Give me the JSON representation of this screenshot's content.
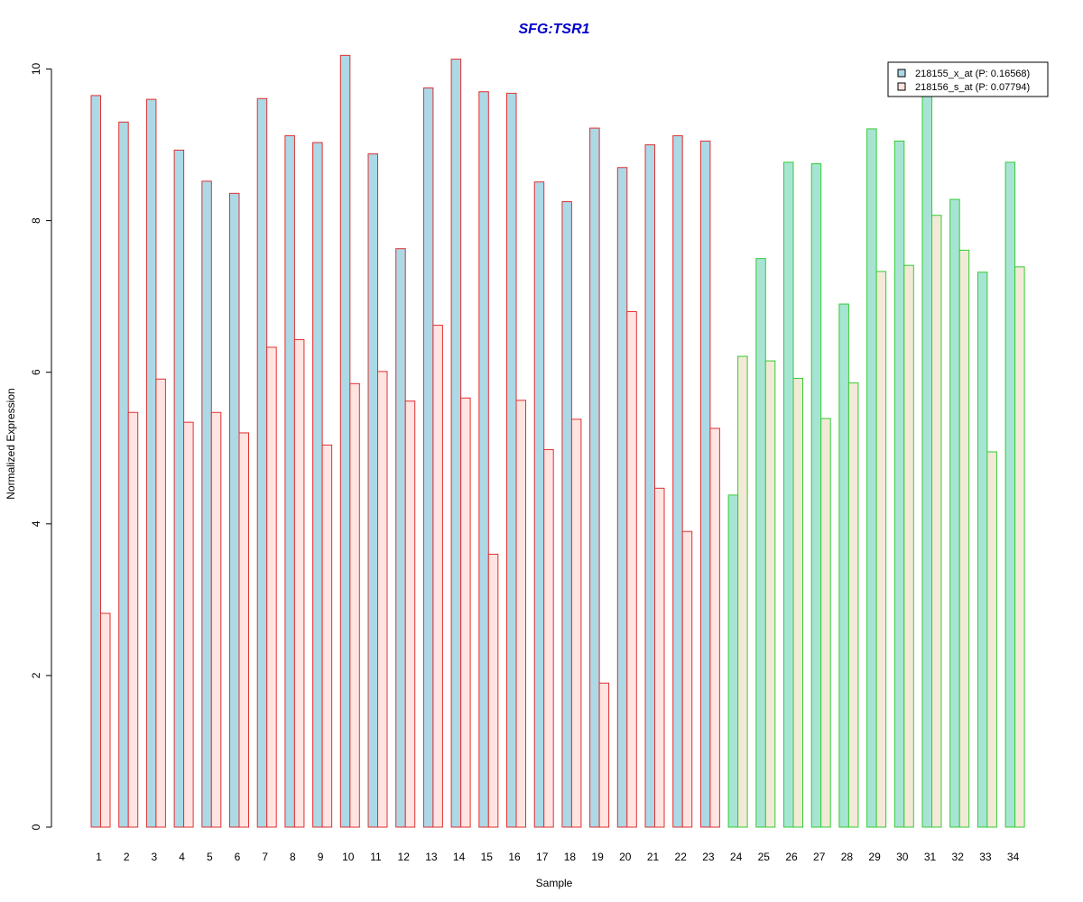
{
  "chart_data": {
    "type": "bar",
    "title": "SFG:TSR1",
    "xlabel": "Sample",
    "ylabel": "Normalized Expression",
    "ylim": [
      0,
      10
    ],
    "yticks": [
      "0",
      "2",
      "4",
      "6",
      "8",
      "10"
    ],
    "grid": false,
    "legend_position": "top-right",
    "categories": [
      "1",
      "2",
      "3",
      "4",
      "5",
      "6",
      "7",
      "8",
      "9",
      "10",
      "11",
      "12",
      "13",
      "14",
      "15",
      "16",
      "17",
      "18",
      "19",
      "20",
      "21",
      "22",
      "23",
      "24",
      "25",
      "26",
      "27",
      "28",
      "29",
      "30",
      "31",
      "32",
      "33",
      "34"
    ],
    "series": [
      {
        "name": "218155_x_at (P: 0.16568)",
        "values": [
          9.65,
          9.3,
          9.6,
          8.93,
          8.52,
          8.36,
          9.61,
          9.12,
          9.03,
          10.18,
          8.88,
          7.63,
          9.75,
          10.13,
          9.7,
          9.68,
          8.51,
          8.25,
          9.22,
          8.7,
          9.0,
          9.12,
          9.05,
          4.38,
          7.5,
          8.77,
          8.75,
          6.9,
          9.21,
          9.05,
          9.7,
          8.28,
          7.32,
          8.77
        ]
      },
      {
        "name": "218156_s_at (P: 0.07794)",
        "values": [
          2.82,
          5.47,
          5.91,
          5.34,
          5.47,
          5.2,
          6.33,
          6.43,
          5.04,
          5.85,
          6.01,
          5.62,
          6.62,
          5.66,
          3.6,
          5.63,
          4.98,
          5.38,
          1.9,
          6.8,
          4.47,
          3.9,
          5.26,
          6.21,
          6.15,
          5.92,
          5.39,
          5.86,
          7.33,
          7.41,
          8.07,
          7.61,
          4.95,
          7.39
        ]
      }
    ],
    "group_break_index": 23,
    "colors": {
      "title": "#0000cc",
      "series1_fill_group1": "#add8e6",
      "series2_fill_group1": "#ffe4e1",
      "group1_border": "#e03030",
      "series1_fill_group2": "#a8e4d4",
      "series2_fill_group2": "#f2ead6",
      "group2_border": "#33cc33",
      "legend_swatch1": "#add8e6",
      "legend_swatch2": "#ffe4e1"
    }
  }
}
